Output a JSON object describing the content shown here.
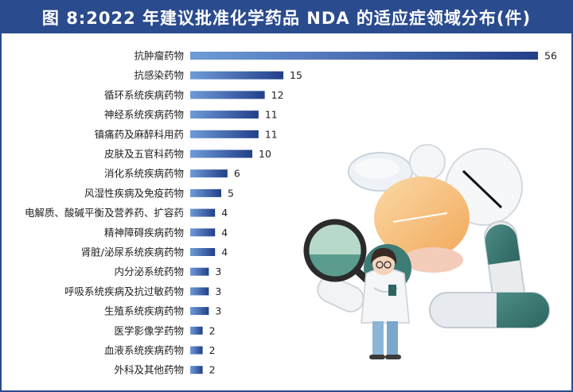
{
  "title": "图 8:2022 年建议批准化学药品 NDA 的适应症领域分布(件)",
  "colors": {
    "frame": "#2a4b8d",
    "bar_light": "#6f9bd8",
    "bar_dark": "#223f8a"
  },
  "chart_data": {
    "type": "bar",
    "orientation": "horizontal",
    "title": "图 8:2022 年建议批准化学药品 NDA 的适应症领域分布(件)",
    "xlabel": "",
    "ylabel": "",
    "grid": false,
    "xlim": [
      0,
      56
    ],
    "categories": [
      "抗肿瘤药物",
      "抗感染药物",
      "循环系统疾病药物",
      "神经系统疾病药物",
      "镇痛药及麻醉科用药",
      "皮肤及五官科药物",
      "消化系统疾病药物",
      "风湿性疾病及免疫药物",
      "电解质、酸碱平衡及营养药、扩容药",
      "精神障碍疾病药物",
      "肾脏/泌尿系统疾病药物",
      "内分泌系统药物",
      "呼吸系统疾病及抗过敏药物",
      "生殖系统疾病药物",
      "医学影像学药物",
      "血液系统疾病药物",
      "外科及其他药物"
    ],
    "values": [
      56,
      15,
      12,
      11,
      11,
      10,
      6,
      5,
      4,
      4,
      4,
      3,
      3,
      3,
      2,
      2,
      2
    ]
  }
}
